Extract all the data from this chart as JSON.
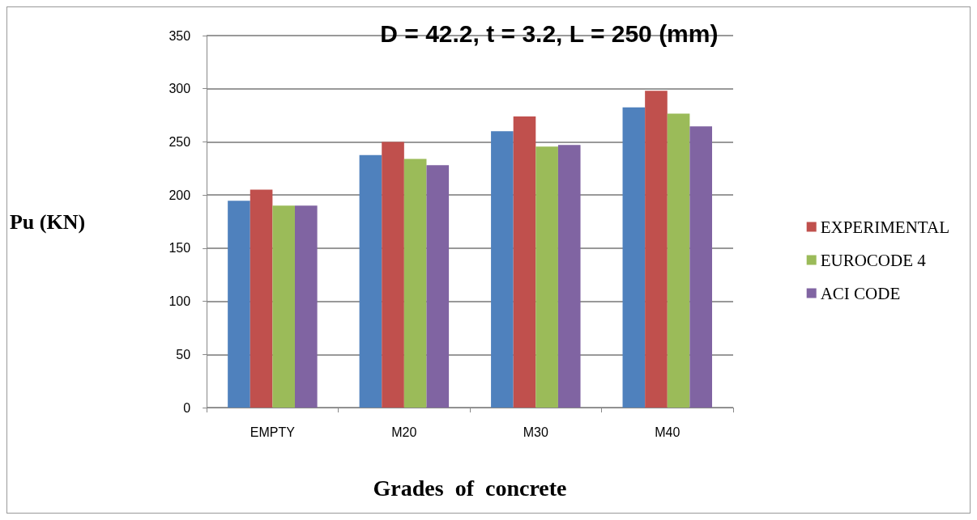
{
  "chart_data": {
    "type": "bar",
    "title": "D = 42.2, t = 3.2, L = 250 (mm)",
    "xlabel": "Grades  of  concrete",
    "ylabel": "Pu (KN)",
    "categories": [
      "EMPTY",
      "M20",
      "M30",
      "M40"
    ],
    "series": [
      {
        "color": "#4f81bd",
        "values": [
          194.5,
          237.5,
          260,
          282.5
        ]
      },
      {
        "name": "EXPERIMENTAL",
        "color": "#c0504d",
        "values": [
          205,
          250,
          274,
          298
        ]
      },
      {
        "name": "EUROCODE 4",
        "color": "#9bbb59",
        "values": [
          190,
          234,
          245.5,
          276.5
        ]
      },
      {
        "name": "ACI CODE",
        "color": "#8064a2",
        "values": [
          190,
          228,
          247,
          264.5
        ]
      }
    ],
    "ylim": [
      0,
      350
    ],
    "yticks": [
      0,
      50,
      100,
      150,
      200,
      250,
      300,
      350
    ],
    "grid": "y",
    "legend": "right"
  }
}
